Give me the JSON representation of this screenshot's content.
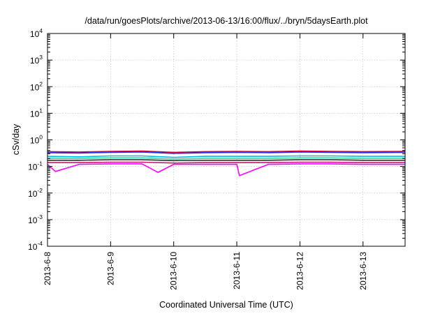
{
  "chart_data": {
    "type": "line",
    "title": "/data/run/goesPlots/archive/2013-06-13/16:00/flux/../bryn/5daysEarth.plot",
    "xlabel": "Coordinated Universal Time (UTC)",
    "ylabel": "cSv/day",
    "yscale": "log",
    "ylim": [
      0.0001,
      10000
    ],
    "y_ticks": [
      {
        "base": "10",
        "exp": "-4",
        "value": 0.0001
      },
      {
        "base": "10",
        "exp": "-3",
        "value": 0.001
      },
      {
        "base": "10",
        "exp": "-2",
        "value": 0.01
      },
      {
        "base": "10",
        "exp": "-1",
        "value": 0.1
      },
      {
        "base": "10",
        "exp": "0",
        "value": 1
      },
      {
        "base": "10",
        "exp": "1",
        "value": 10
      },
      {
        "base": "10",
        "exp": "2",
        "value": 100
      },
      {
        "base": "10",
        "exp": "3",
        "value": 1000
      },
      {
        "base": "10",
        "exp": "4",
        "value": 10000
      }
    ],
    "x_type": "time",
    "xlim": [
      "2013-06-08T00:00",
      "2013-06-13T16:00"
    ],
    "x_ticks": [
      "2013-6-8",
      "2013-6-9",
      "2013-6-10",
      "2013-6-11",
      "2013-6-12",
      "2013-6-13"
    ],
    "x_tick_values": [
      "2013-06-08",
      "2013-06-09",
      "2013-06-10",
      "2013-06-11",
      "2013-06-12",
      "2013-06-13"
    ],
    "grid": true,
    "legend": "none",
    "series": [
      {
        "color": "#d4002a",
        "x": [
          "2013-06-08T00:00",
          "2013-06-08T12:00",
          "2013-06-09T00:00",
          "2013-06-09T12:00",
          "2013-06-10T00:00",
          "2013-06-10T12:00",
          "2013-06-11T00:00",
          "2013-06-11T12:00",
          "2013-06-12T00:00",
          "2013-06-12T12:00",
          "2013-06-13T00:00",
          "2013-06-13T16:00"
        ],
        "values": [
          0.36,
          0.35,
          0.37,
          0.38,
          0.34,
          0.36,
          0.37,
          0.36,
          0.38,
          0.37,
          0.36,
          0.37
        ]
      },
      {
        "color": "#2a2ef0",
        "x": [
          "2013-06-08T00:00",
          "2013-06-08T12:00",
          "2013-06-09T00:00",
          "2013-06-09T12:00",
          "2013-06-10T00:00",
          "2013-06-10T12:00",
          "2013-06-11T00:00",
          "2013-06-11T12:00",
          "2013-06-12T00:00",
          "2013-06-12T12:00",
          "2013-06-13T00:00",
          "2013-06-13T16:00"
        ],
        "values": [
          0.33,
          0.32,
          0.34,
          0.35,
          0.31,
          0.33,
          0.34,
          0.33,
          0.35,
          0.34,
          0.33,
          0.34
        ]
      },
      {
        "color": "#00b8e8",
        "x": [
          "2013-06-08T00:00",
          "2013-06-08T12:00",
          "2013-06-09T00:00",
          "2013-06-09T12:00",
          "2013-06-10T00:00",
          "2013-06-10T12:00",
          "2013-06-11T00:00",
          "2013-06-11T12:00",
          "2013-06-12T00:00",
          "2013-06-12T12:00",
          "2013-06-13T00:00",
          "2013-06-13T16:00"
        ],
        "values": [
          0.24,
          0.23,
          0.25,
          0.25,
          0.22,
          0.24,
          0.24,
          0.24,
          0.25,
          0.25,
          0.24,
          0.24
        ]
      },
      {
        "color": "#34d6a0",
        "x": [
          "2013-06-08T00:00",
          "2013-06-08T12:00",
          "2013-06-09T00:00",
          "2013-06-09T12:00",
          "2013-06-10T00:00",
          "2013-06-10T12:00",
          "2013-06-11T00:00",
          "2013-06-11T12:00",
          "2013-06-12T00:00",
          "2013-06-12T12:00",
          "2013-06-13T00:00",
          "2013-06-13T16:00"
        ],
        "values": [
          0.2,
          0.2,
          0.21,
          0.21,
          0.19,
          0.2,
          0.2,
          0.2,
          0.21,
          0.21,
          0.2,
          0.2
        ]
      },
      {
        "color": "#303030",
        "x": [
          "2013-06-08T00:00",
          "2013-06-08T12:00",
          "2013-06-09T00:00",
          "2013-06-09T12:00",
          "2013-06-10T00:00",
          "2013-06-10T12:00",
          "2013-06-11T00:00",
          "2013-06-11T12:00",
          "2013-06-12T00:00",
          "2013-06-12T12:00",
          "2013-06-13T00:00",
          "2013-06-13T16:00"
        ],
        "values": [
          0.17,
          0.17,
          0.18,
          0.18,
          0.165,
          0.17,
          0.17,
          0.17,
          0.18,
          0.18,
          0.17,
          0.17
        ]
      },
      {
        "color": "#c0186a",
        "x": [
          "2013-06-08T00:00",
          "2013-06-08T12:00",
          "2013-06-09T00:00",
          "2013-06-09T12:00",
          "2013-06-10T00:00",
          "2013-06-10T12:00",
          "2013-06-11T00:00",
          "2013-06-11T12:00",
          "2013-06-12T00:00",
          "2013-06-12T12:00",
          "2013-06-13T00:00",
          "2013-06-13T16:00"
        ],
        "values": [
          0.14,
          0.14,
          0.145,
          0.145,
          0.135,
          0.14,
          0.14,
          0.14,
          0.145,
          0.145,
          0.14,
          0.14
        ]
      },
      {
        "color": "#ff00ff",
        "x": [
          "2013-06-08T00:00",
          "2013-06-08T03:00",
          "2013-06-08T12:00",
          "2013-06-09T00:00",
          "2013-06-09T12:00",
          "2013-06-09T18:00",
          "2013-06-10T00:00",
          "2013-06-10T12:00",
          "2013-06-11T00:00",
          "2013-06-11T01:00",
          "2013-06-11T12:00",
          "2013-06-12T00:00",
          "2013-06-12T12:00",
          "2013-06-13T00:00",
          "2013-06-13T16:00"
        ],
        "values": [
          0.12,
          0.065,
          0.12,
          0.125,
          0.125,
          0.06,
          0.12,
          0.12,
          0.12,
          0.045,
          0.12,
          0.125,
          0.125,
          0.12,
          0.12
        ]
      }
    ]
  }
}
